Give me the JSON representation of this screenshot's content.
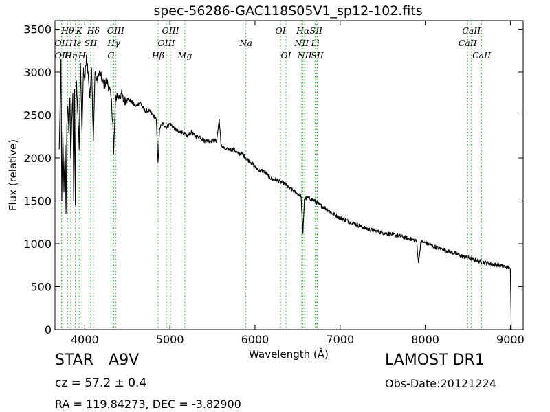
{
  "chart_data": {
    "type": "line",
    "title": "spec-56286-GAC118S05V1_sp12-102.fits",
    "xlabel": "Wavelength (Å)",
    "ylabel": "Flux (relative)",
    "xlim": [
      3650,
      9150
    ],
    "ylim": [
      0,
      3600
    ],
    "xticks": [
      4000,
      5000,
      6000,
      7000,
      8000,
      9000
    ],
    "yticks": [
      0,
      500,
      1000,
      1500,
      2000,
      2500,
      3000,
      3500
    ],
    "grid": false,
    "legend": "none",
    "line_color": "#000000",
    "marker_color": "#2ca02c",
    "series": [
      {
        "x": [
          3700,
          3712,
          3720,
          3730,
          3742,
          3755,
          3770,
          3780,
          3790,
          3800,
          3812,
          3825,
          3835,
          3850,
          3860,
          3870,
          3880,
          3889,
          3900,
          3920,
          3934,
          3950,
          3968,
          3985,
          4000,
          4020,
          4040,
          4060,
          4080,
          4101,
          4120,
          4140,
          4160,
          4180,
          4200,
          4230,
          4260,
          4290,
          4310,
          4330,
          4340,
          4360,
          4380,
          4400,
          4430,
          4460,
          4500,
          4550,
          4600,
          4650,
          4700,
          4750,
          4800,
          4840,
          4861,
          4880,
          4920,
          4960,
          5000,
          5050,
          5100,
          5150,
          5200,
          5250,
          5300,
          5350,
          5400,
          5450,
          5500,
          5550,
          5580,
          5600,
          5650,
          5700,
          5750,
          5800,
          5850,
          5893,
          5950,
          6000,
          6050,
          6100,
          6150,
          6200,
          6250,
          6300,
          6350,
          6400,
          6450,
          6500,
          6540,
          6563,
          6580,
          6620,
          6660,
          6700,
          6750,
          6800,
          6850,
          6900,
          6950,
          7000,
          7050,
          7100,
          7150,
          7200,
          7300,
          7400,
          7500,
          7600,
          7700,
          7800,
          7850,
          7900,
          7920,
          7950,
          8000,
          8050,
          8100,
          8150,
          8200,
          8250,
          8300,
          8350,
          8400,
          8450,
          8500,
          8550,
          8600,
          8650,
          8700,
          8750,
          8800,
          8850,
          8900,
          8950,
          8990,
          9000,
          9010
        ],
        "y": [
          2100,
          2700,
          3150,
          1500,
          2300,
          1600,
          2150,
          1350,
          2400,
          2600,
          2300,
          2700,
          2000,
          2500,
          2750,
          1500,
          2800,
          1450,
          2900,
          2500,
          2100,
          3100,
          2300,
          3050,
          2900,
          3200,
          3000,
          2700,
          3050,
          2200,
          3000,
          2900,
          2950,
          3000,
          2900,
          2850,
          2900,
          2800,
          2700,
          2400,
          2050,
          2650,
          2750,
          2700,
          2750,
          2650,
          2700,
          2650,
          2600,
          2650,
          2550,
          2550,
          2500,
          2450,
          1950,
          2350,
          2400,
          2350,
          2400,
          2350,
          2300,
          2300,
          2250,
          2300,
          2250,
          2250,
          2200,
          2200,
          2200,
          2200,
          2450,
          2150,
          2100,
          2100,
          2100,
          2050,
          2050,
          2000,
          1950,
          1900,
          1850,
          1850,
          1800,
          1750,
          1750,
          1720,
          1700,
          1650,
          1620,
          1580,
          1560,
          1120,
          1520,
          1540,
          1520,
          1500,
          1460,
          1430,
          1400,
          1360,
          1330,
          1300,
          1280,
          1260,
          1240,
          1220,
          1180,
          1150,
          1130,
          1110,
          1090,
          1060,
          1050,
          1030,
          780,
          1030,
          1010,
          990,
          970,
          950,
          940,
          920,
          900,
          890,
          870,
          850,
          840,
          820,
          810,
          790,
          780,
          770,
          760,
          750,
          740,
          730,
          720,
          700,
          0
        ]
      }
    ],
    "line_markers": [
      {
        "label": "OII",
        "x": 3727,
        "row": 2
      },
      {
        "label": "OII",
        "x": 3729,
        "row": 3
      },
      {
        "label": "Hθ",
        "x": 3798,
        "row": 1
      },
      {
        "label": "Hη",
        "x": 3835,
        "row": 3
      },
      {
        "label": "Hε",
        "x": 3889,
        "row": 2
      },
      {
        "label": "K",
        "x": 3934,
        "row": 1
      },
      {
        "label": "H",
        "x": 3968,
        "row": 3
      },
      {
        "label": "SII",
        "x": 4069,
        "row": 2
      },
      {
        "label": "Hδ",
        "x": 4101,
        "row": 1
      },
      {
        "label": "OIII",
        "x": 4363,
        "row": 1
      },
      {
        "label": "Hγ",
        "x": 4340,
        "row": 2
      },
      {
        "label": "G",
        "x": 4307,
        "row": 3
      },
      {
        "label": "OIII",
        "x": 5007,
        "row": 1
      },
      {
        "label": "OIII",
        "x": 4959,
        "row": 2
      },
      {
        "label": "Hβ",
        "x": 4861,
        "row": 3
      },
      {
        "label": "Mg",
        "x": 5175,
        "row": 3
      },
      {
        "label": "Na",
        "x": 5893,
        "row": 2
      },
      {
        "label": "OI",
        "x": 6300,
        "row": 1
      },
      {
        "label": "OI",
        "x": 6364,
        "row": 3
      },
      {
        "label": "Hα",
        "x": 6563,
        "row": 1
      },
      {
        "label": "NII",
        "x": 6548,
        "row": 2
      },
      {
        "label": "NII",
        "x": 6583,
        "row": 3
      },
      {
        "label": "SII",
        "x": 6717,
        "row": 1
      },
      {
        "label": "Li",
        "x": 6708,
        "row": 2
      },
      {
        "label": "SII",
        "x": 6731,
        "row": 3
      },
      {
        "label": "CaII",
        "x": 8542,
        "row": 1
      },
      {
        "label": "CaII",
        "x": 8498,
        "row": 2
      },
      {
        "label": "CaII",
        "x": 8662,
        "row": 3
      }
    ]
  },
  "footer": {
    "object_class": "STAR",
    "subclass": "A9V",
    "survey": "LAMOST DR1",
    "redshift": "cz = 57.2 ± 0.4",
    "obs_date": "Obs-Date:20121224",
    "coordinates": "RA = 119.84273, DEC = -3.82900"
  }
}
